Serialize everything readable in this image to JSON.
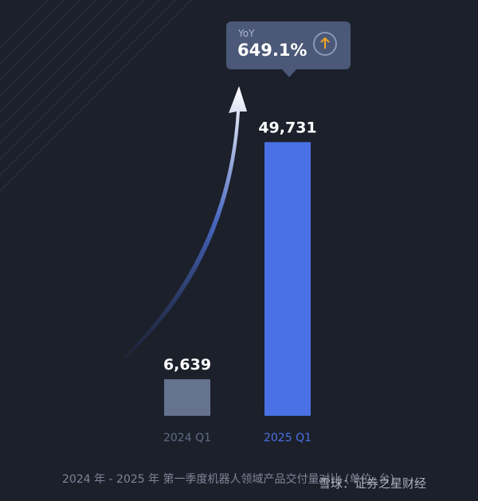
{
  "chart_data": {
    "type": "bar",
    "categories": [
      "2024 Q1",
      "2025 Q1"
    ],
    "values": [
      6639,
      49731
    ],
    "value_labels": [
      "6,639",
      "49,731"
    ],
    "bar_colors": [
      "#66738f",
      "#4a72e6"
    ],
    "category_label_colors": [
      "#5f6b85",
      "#4a72e6"
    ],
    "ylim": [
      0,
      55000
    ],
    "grid": false,
    "annotation": {
      "label": "YoY",
      "value": "649.1%",
      "icon": "up-arrow-icon",
      "icon_color": "#f5a623"
    }
  },
  "footer": {
    "text": "2024 年 - 2025 年 第一季度机器人领域产品交付量对比 (单位: 台)"
  },
  "watermark": {
    "text": "雪球：证券之星财经"
  }
}
